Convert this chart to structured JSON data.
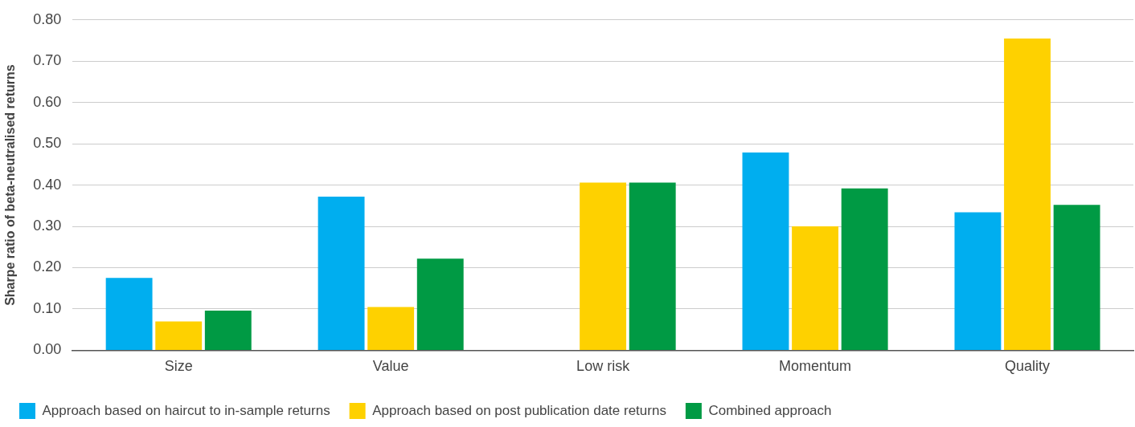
{
  "chart_data": {
    "type": "bar",
    "ylabel": "Sharpe ratio of beta-neutralised returns",
    "categories": [
      "Size",
      "Value",
      "Low risk",
      "Momentum",
      "Quality"
    ],
    "series": [
      {
        "name": "Approach based on haircut to in-sample returns",
        "color": "#00aeef",
        "values": [
          0.175,
          0.372,
          null,
          0.479,
          0.334
        ]
      },
      {
        "name": "Approach based on post publication date returns",
        "color": "#fed100",
        "values": [
          0.07,
          0.105,
          0.406,
          0.3,
          0.755
        ]
      },
      {
        "name": "Combined approach",
        "color": "#009a44",
        "values": [
          0.096,
          0.222,
          0.406,
          0.392,
          0.352
        ]
      }
    ],
    "ylim": [
      0,
      0.8
    ],
    "yticks": [
      {
        "value": 0,
        "label": "0.00"
      },
      {
        "value": 0.1,
        "label": "0.10"
      },
      {
        "value": 0.2,
        "label": "0.20"
      },
      {
        "value": 0.3,
        "label": "0.30"
      },
      {
        "value": 0.4,
        "label": "0.40"
      },
      {
        "value": 0.5,
        "label": "0.50"
      },
      {
        "value": 0.6,
        "label": "0.60"
      },
      {
        "value": 0.7,
        "label": "0.70"
      },
      {
        "value": 0.8,
        "label": "0.80"
      }
    ],
    "grid": "y",
    "legend": "bottom"
  }
}
